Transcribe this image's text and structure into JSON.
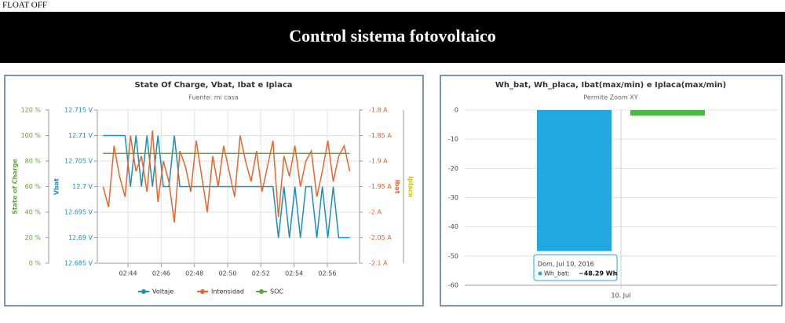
{
  "status": "FLOAT OFF",
  "header": "Control sistema fotovoltaico",
  "chart_data": [
    {
      "type": "line",
      "title": "State Of Charge, Vbat, Ibat e Iplaca",
      "subtitle": "Fuente: mi casa",
      "y_title": "State of Charge",
      "y2_title": "Vbat",
      "y3_title": "Ibat",
      "y4_title": "Iplaca",
      "y_color": "#5aa832",
      "y2_color": "#1d8fb8",
      "y3_color": "#e8652e",
      "y4_color": "#d4c400",
      "xlim": [
        42.2,
        57.8
      ],
      "xticks": [
        {
          "value": 44,
          "label": "02:44"
        },
        {
          "value": 46,
          "label": "02:46"
        },
        {
          "value": 48,
          "label": "02:48"
        },
        {
          "value": 50,
          "label": "02:50"
        },
        {
          "value": 52,
          "label": "02:52"
        },
        {
          "value": 54,
          "label": "02:54"
        },
        {
          "value": 56,
          "label": "02:56"
        }
      ],
      "ylim": [
        0,
        120
      ],
      "yticks": [
        {
          "value": 0,
          "label": "0 %"
        },
        {
          "value": 20,
          "label": "20 %"
        },
        {
          "value": 40,
          "label": "40 %"
        },
        {
          "value": 60,
          "label": "60 %"
        },
        {
          "value": 80,
          "label": "80 %"
        },
        {
          "value": 100,
          "label": "100 %"
        },
        {
          "value": 120,
          "label": "120 %"
        }
      ],
      "y2lim": [
        12.685,
        12.715
      ],
      "y2ticks": [
        {
          "value": 12.685,
          "label": "12.685 V"
        },
        {
          "value": 12.69,
          "label": "12.69 V"
        },
        {
          "value": 12.695,
          "label": "12.695 V"
        },
        {
          "value": 12.7,
          "label": "12.7 V"
        },
        {
          "value": 12.705,
          "label": "12.705 V"
        },
        {
          "value": 12.71,
          "label": "12.71 V"
        },
        {
          "value": 12.715,
          "label": "12.715 V"
        }
      ],
      "y3lim": [
        -2.1,
        -1.8
      ],
      "y3ticks": [
        {
          "value": -2.1,
          "label": "-2.1 A"
        },
        {
          "value": -2.05,
          "label": "-2.05 A"
        },
        {
          "value": -2,
          "label": "-2 A"
        },
        {
          "value": -1.95,
          "label": "-1.95 A"
        },
        {
          "value": -1.9,
          "label": "-1.9 A"
        },
        {
          "value": -1.85,
          "label": "-1.85 A"
        },
        {
          "value": -1.8,
          "label": "-1.8 A"
        }
      ],
      "grid": true,
      "x": [
        42.5,
        42.83,
        43.16,
        43.49,
        43.82,
        44.15,
        44.48,
        44.81,
        45.14,
        45.47,
        45.8,
        46.13,
        46.46,
        46.79,
        47.12,
        47.45,
        47.78,
        48.11,
        48.44,
        48.77,
        49.1,
        49.43,
        49.76,
        50.09,
        50.42,
        50.75,
        51.08,
        51.41,
        51.74,
        52.07,
        52.4,
        52.73,
        53.06,
        53.39,
        53.72,
        54.05,
        54.38,
        54.71,
        55.04,
        55.37,
        55.7,
        56.03,
        56.36,
        56.69,
        57.02,
        57.35
      ],
      "series": [
        {
          "name": "Voltaje",
          "color": "#1d8fb8",
          "axis": "y2",
          "values": [
            12.71,
            12.71,
            12.71,
            12.71,
            12.71,
            12.7,
            12.71,
            12.7,
            12.71,
            12.7,
            12.71,
            12.7,
            12.7,
            12.71,
            12.7,
            12.7,
            12.7,
            12.7,
            12.7,
            12.7,
            12.7,
            12.7,
            12.7,
            12.7,
            12.7,
            12.7,
            12.7,
            12.7,
            12.7,
            12.7,
            12.7,
            12.7,
            12.69,
            12.7,
            12.69,
            12.7,
            12.69,
            12.7,
            12.7,
            12.69,
            12.7,
            12.69,
            12.7,
            12.69,
            12.69,
            12.69
          ]
        },
        {
          "name": "Intensidad",
          "color": "#e8652e",
          "axis": "y3",
          "values": [
            -1.95,
            -1.99,
            -1.87,
            -1.93,
            -1.97,
            -1.85,
            -1.92,
            -1.89,
            -1.96,
            -1.84,
            -1.98,
            -1.9,
            -1.94,
            -2.02,
            -1.88,
            -1.91,
            -1.96,
            -1.86,
            -1.93,
            -2.0,
            -1.89,
            -1.95,
            -1.87,
            -1.92,
            -1.97,
            -1.85,
            -1.9,
            -1.94,
            -1.88,
            -1.96,
            -1.91,
            -1.86,
            -2.01,
            -1.89,
            -1.93,
            -1.87,
            -1.95,
            -1.9,
            -1.88,
            -1.97,
            -1.92,
            -1.86,
            -1.94,
            -1.89,
            -1.87,
            -1.92
          ]
        },
        {
          "name": "SOC",
          "color": "#5aa832",
          "axis": "y",
          "values": [
            86,
            86,
            86,
            86,
            86,
            86,
            86,
            86,
            86,
            86,
            86,
            86,
            86,
            86,
            86,
            86,
            86,
            86,
            86,
            86,
            86,
            86,
            86,
            86,
            86,
            86,
            86,
            86,
            86,
            86,
            86,
            86,
            86,
            86,
            86,
            86,
            86,
            86,
            86,
            86,
            86,
            86,
            86,
            86,
            86,
            86
          ]
        }
      ]
    },
    {
      "type": "bar",
      "title": "Wh_bat, Wh_placa, Ibat(max/min) e Iplaca(max/min)",
      "subtitle": "Permite Zoom XY",
      "categories": [
        "10. Jul"
      ],
      "ylim": [
        -60,
        0
      ],
      "yticks": [
        -60,
        -50,
        -40,
        -30,
        -20,
        -10,
        0
      ],
      "grid": true,
      "series": [
        {
          "color": "#22a7e0",
          "values": [
            -48.29
          ]
        },
        {
          "color": "#4cb848",
          "values": [
            -1.9
          ]
        }
      ],
      "tooltip": {
        "header": "Dom, Jul 10, 2016",
        "label": "Wh_bat:",
        "value": "−48.29 Wh"
      }
    }
  ]
}
